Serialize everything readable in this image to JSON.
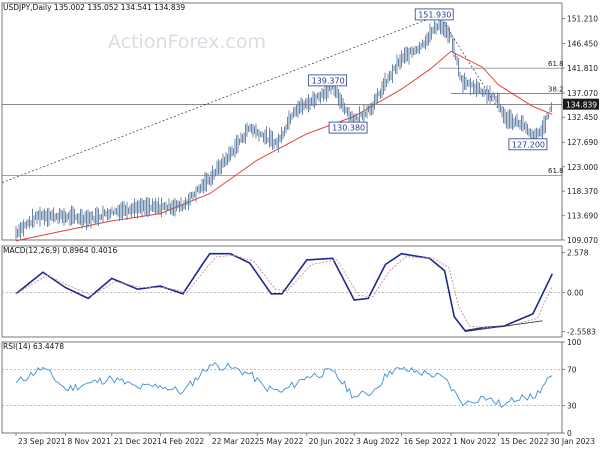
{
  "chart_data": [
    {
      "type": "candlestick",
      "panel": "price",
      "header": "USDJPY,Daily  135.002 135.052 134.541 134.839",
      "watermark": "ActionForex.com",
      "ylim": [
        109.07,
        154.2
      ],
      "y_ticks": [
        "151.210",
        "146.450",
        "141.810",
        "137.070",
        "132.450",
        "127.690",
        "123.000",
        "118.370",
        "113.690",
        "109.070"
      ],
      "last_price": "134.839",
      "x_ticks": [
        "23 Sep 2021",
        "8 Nov 2021",
        "21 Dec 2021",
        "4 Feb 2022",
        "22 Mar 2022",
        "5 May 2022",
        "20 Jun 2022",
        "3 Aug 2022",
        "16 Sep 2022",
        "1 Nov 2022",
        "15 Dec 2022",
        "30 Jan 2023"
      ],
      "price_series": {
        "x": [
          "2021-09-23",
          "2021-10-15",
          "2021-11-08",
          "2021-12-01",
          "2021-12-21",
          "2022-01-10",
          "2022-02-04",
          "2022-02-25",
          "2022-03-22",
          "2022-04-10",
          "2022-04-28",
          "2022-05-05",
          "2022-05-24",
          "2022-06-08",
          "2022-06-20",
          "2022-07-14",
          "2022-08-02",
          "2022-08-20",
          "2022-09-01",
          "2022-09-16",
          "2022-10-05",
          "2022-10-21",
          "2022-11-01",
          "2022-11-11",
          "2022-11-24",
          "2022-12-08",
          "2022-12-15",
          "2022-12-20",
          "2023-01-06",
          "2023-01-16",
          "2023-01-25",
          "2023-02-03"
        ],
        "y": [
          110.5,
          113.8,
          113.5,
          113.2,
          114.4,
          115.2,
          115.3,
          115.6,
          120.8,
          125.4,
          130.5,
          129.6,
          127.4,
          133.8,
          134.9,
          138.2,
          131.7,
          134.5,
          138.9,
          143.5,
          146.2,
          150.4,
          147.6,
          139.2,
          138.2,
          136.5,
          135.6,
          132.4,
          131.2,
          128.5,
          130.1,
          134.8
        ]
      },
      "ma_series": {
        "name": "",
        "x": [
          "2021-09-23",
          "2021-11-08",
          "2021-12-21",
          "2022-02-04",
          "2022-03-22",
          "2022-05-05",
          "2022-06-20",
          "2022-08-03",
          "2022-09-16",
          "2022-10-12",
          "2022-11-01",
          "2022-11-30",
          "2022-12-15",
          "2023-01-16",
          "2023-02-03"
        ],
        "y": [
          108.9,
          110.9,
          112.7,
          114.1,
          117.9,
          124.3,
          129.3,
          132.6,
          137.8,
          141.5,
          145.0,
          142.0,
          138.6,
          134.5,
          133.0
        ]
      },
      "fib_levels": [
        {
          "label": "61.8",
          "value": 141.8
        },
        {
          "label": "38.2",
          "value": 137.0
        },
        {
          "label": "61.8",
          "value": 121.4
        }
      ],
      "horizontal_line": 134.9,
      "callouts": [
        {
          "label": "151.930",
          "date": "2022-10-21",
          "value": 151.93
        },
        {
          "label": "139.370",
          "date": "2022-07-14",
          "value": 139.37
        },
        {
          "label": "130.380",
          "date": "2022-08-02",
          "value": 130.38
        },
        {
          "label": "127.200",
          "date": "2023-01-16",
          "value": 127.2
        }
      ]
    },
    {
      "type": "line",
      "panel": "macd",
      "header": "MACD(12,26,9) 0.8964 0.4016",
      "ylim": [
        -2.9,
        3.0
      ],
      "y_ticks": [
        "2.578",
        "0.00",
        "-2.5583"
      ],
      "series": [
        {
          "x": [
            "2021-09-23",
            "2021-10-18",
            "2021-11-08",
            "2021-11-29",
            "2021-12-21",
            "2022-01-14",
            "2022-02-04",
            "2022-02-25",
            "2022-03-15",
            "2022-03-22",
            "2022-04-10",
            "2022-04-28",
            "2022-05-18",
            "2022-05-28",
            "2022-06-20",
            "2022-07-14",
            "2022-08-03",
            "2022-08-16",
            "2022-09-01",
            "2022-09-16",
            "2022-10-12",
            "2022-10-26",
            "2022-11-04",
            "2022-11-14",
            "2022-12-01",
            "2022-12-20",
            "2023-01-16",
            "2023-02-03"
          ],
          "y": [
            -0.1,
            1.3,
            0.3,
            -0.4,
            0.9,
            0.2,
            0.4,
            -0.1,
            1.8,
            2.5,
            2.5,
            1.9,
            -0.1,
            -0.1,
            2.1,
            2.2,
            -0.5,
            -0.4,
            1.8,
            2.5,
            2.2,
            1.4,
            -1.6,
            -2.5,
            -2.3,
            -2.2,
            -1.4,
            1.2
          ]
        },
        {
          "x": [
            "2021-09-23",
            "2021-10-22",
            "2021-11-12",
            "2021-12-03",
            "2021-12-24",
            "2022-01-18",
            "2022-02-08",
            "2022-03-01",
            "2022-03-18",
            "2022-03-28",
            "2022-04-14",
            "2022-05-02",
            "2022-05-22",
            "2022-06-02",
            "2022-06-24",
            "2022-07-18",
            "2022-08-07",
            "2022-08-20",
            "2022-09-05",
            "2022-09-20",
            "2022-10-16",
            "2022-10-30",
            "2022-11-08",
            "2022-11-18",
            "2022-12-05",
            "2022-12-24",
            "2023-01-20",
            "2023-02-03"
          ],
          "y": [
            -0.1,
            1.1,
            0.4,
            -0.2,
            0.7,
            0.3,
            0.3,
            0.0,
            1.5,
            2.3,
            2.4,
            2.0,
            0.2,
            0.1,
            1.8,
            2.1,
            -0.2,
            -0.3,
            1.4,
            2.3,
            2.2,
            1.6,
            -0.9,
            -2.2,
            -2.3,
            -2.2,
            -1.7,
            0.4
          ]
        }
      ]
    },
    {
      "type": "line",
      "panel": "rsi",
      "header": "RSI(14) 63.4478",
      "ylim": [
        0,
        100
      ],
      "y_ticks": [
        "100",
        "70",
        "30",
        "0"
      ],
      "series": [
        {
          "x": [
            "2021-09-23",
            "2021-10-18",
            "2021-11-08",
            "2021-12-01",
            "2021-12-21",
            "2022-01-14",
            "2022-02-04",
            "2022-02-25",
            "2022-03-22",
            "2022-04-10",
            "2022-04-28",
            "2022-05-12",
            "2022-05-28",
            "2022-06-20",
            "2022-07-14",
            "2022-08-03",
            "2022-08-20",
            "2022-09-05",
            "2022-09-16",
            "2022-10-12",
            "2022-10-26",
            "2022-11-08",
            "2022-11-14",
            "2022-12-01",
            "2022-12-20",
            "2023-01-06",
            "2023-01-16",
            "2023-02-03"
          ],
          "y": [
            55,
            72,
            48,
            55,
            60,
            50,
            52,
            45,
            75,
            72,
            65,
            50,
            45,
            62,
            68,
            40,
            45,
            68,
            70,
            65,
            60,
            38,
            32,
            40,
            30,
            42,
            38,
            63
          ]
        }
      ]
    }
  ]
}
